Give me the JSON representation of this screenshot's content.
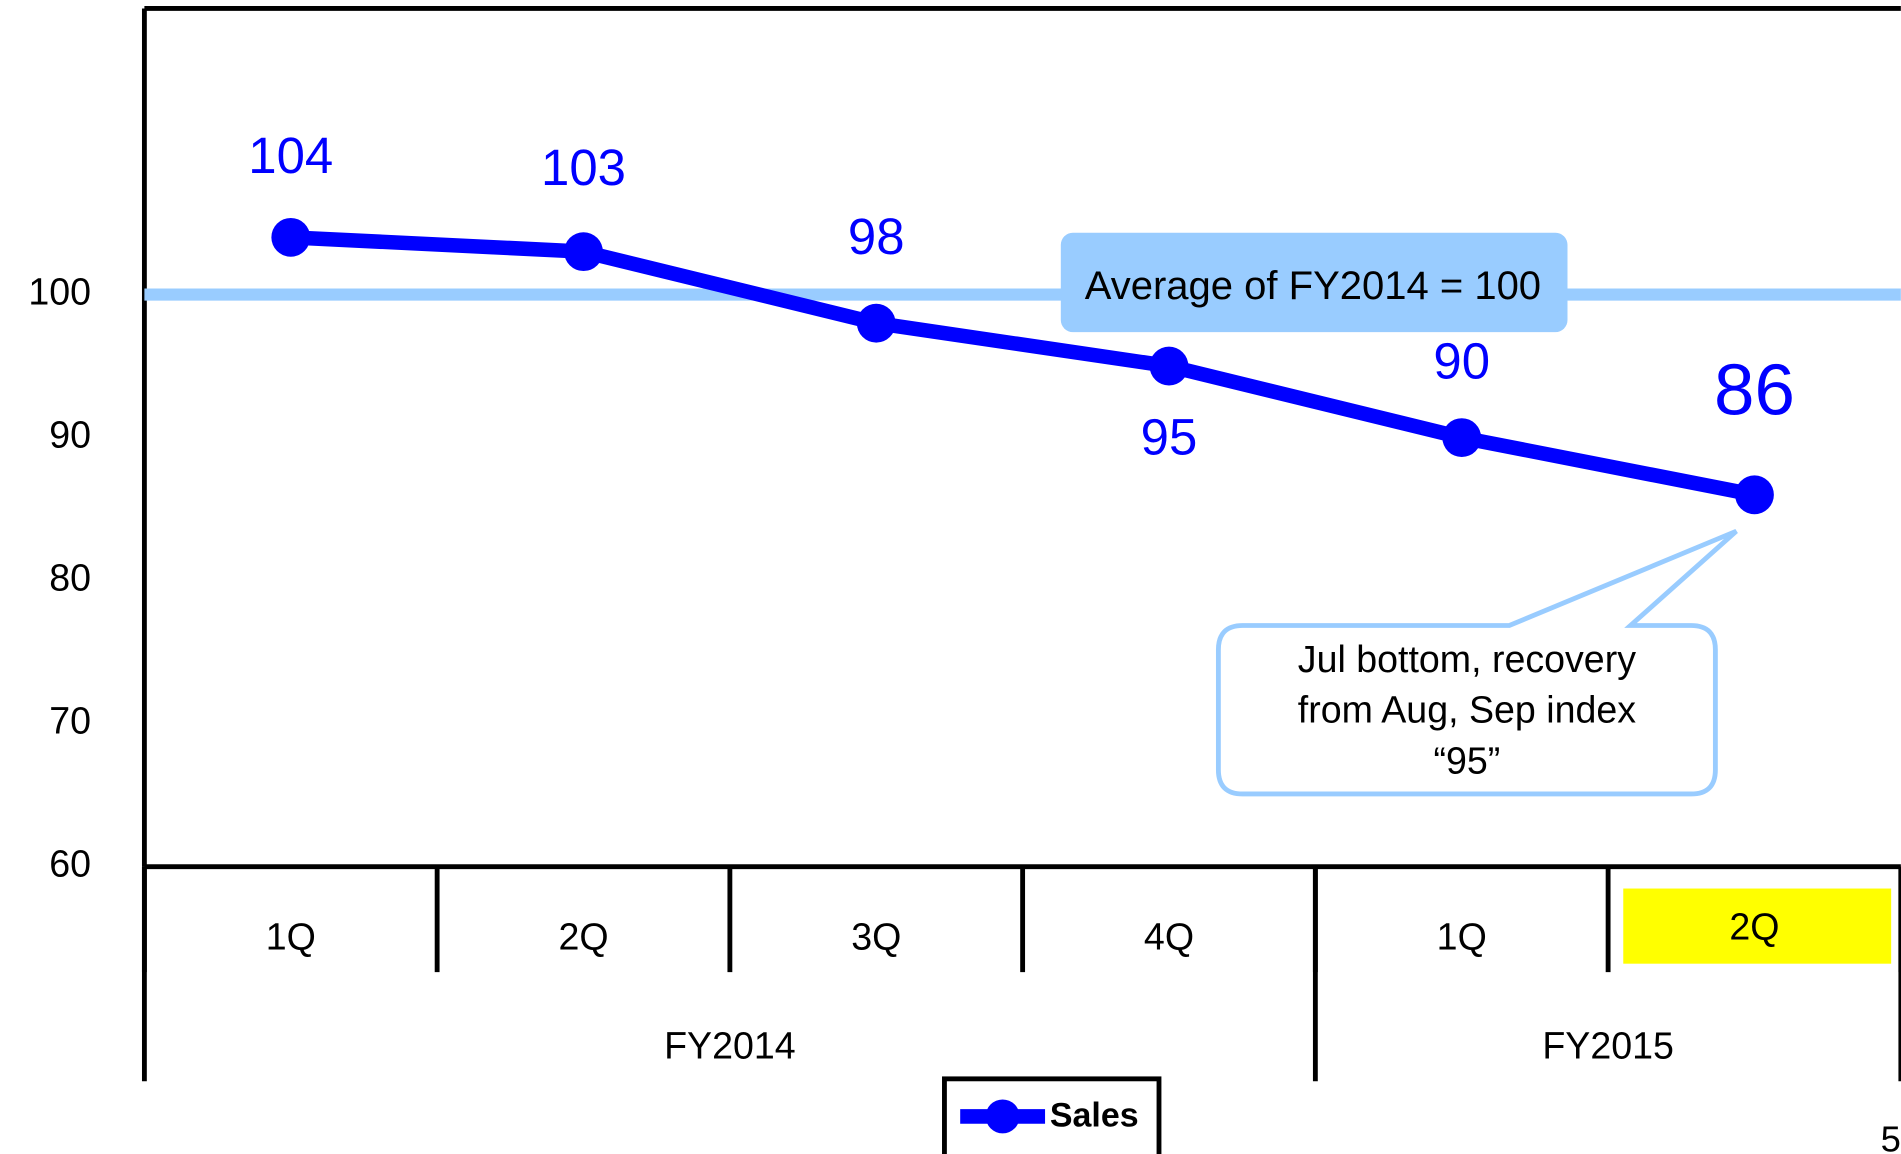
{
  "chart_data": {
    "type": "line",
    "categories": [
      "1Q",
      "2Q",
      "3Q",
      "4Q",
      "1Q",
      "2Q"
    ],
    "groups": [
      {
        "name": "FY2014",
        "span": 4
      },
      {
        "name": "FY2015",
        "span": 2
      }
    ],
    "series": [
      {
        "name": "Sales",
        "color": "#0000ff",
        "values": [
          104,
          103,
          98,
          95,
          90,
          86
        ]
      }
    ],
    "ylim": [
      60,
      120
    ],
    "yticks": [
      60,
      70,
      80,
      90,
      100
    ],
    "reference_line": {
      "value": 100,
      "label": "Average of FY2014 = 100",
      "color": "#99ccff"
    },
    "annotation": {
      "lines": [
        "Jul bottom, recovery",
        "from Aug, Sep index",
        "“95”"
      ]
    },
    "legend": "bottom",
    "page_number": "5"
  }
}
